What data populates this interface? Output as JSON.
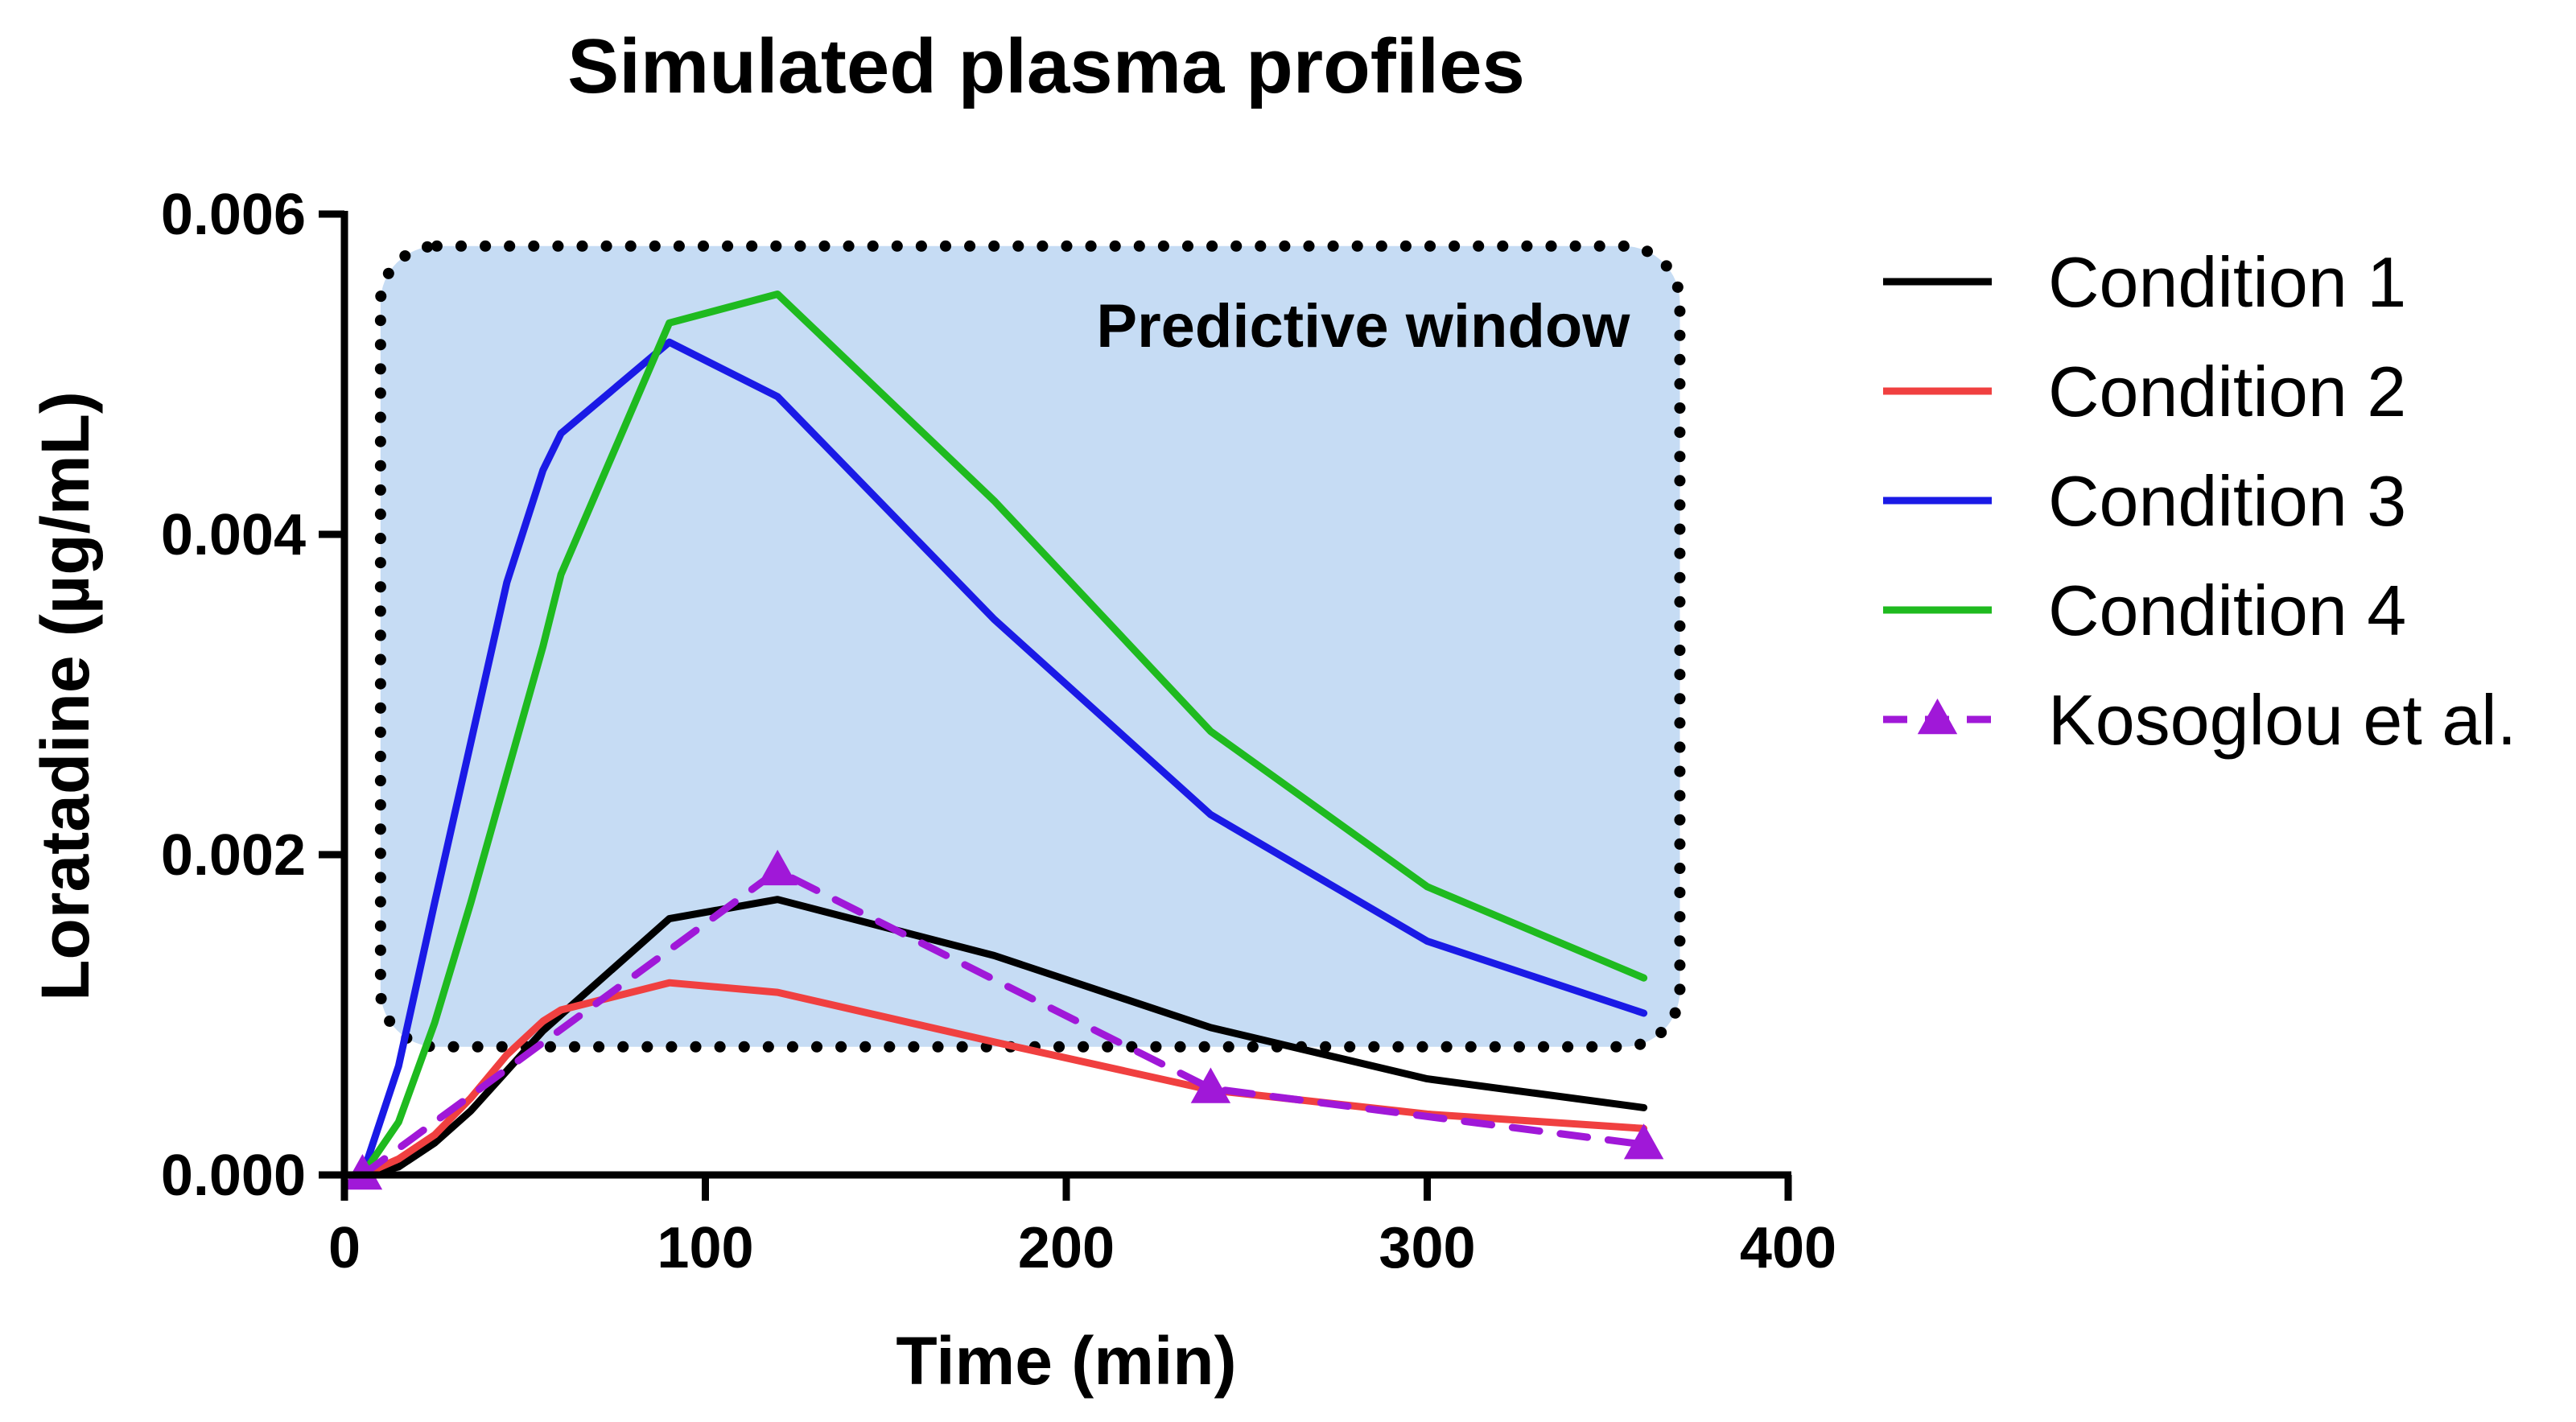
{
  "chart_data": {
    "type": "line",
    "title": "Simulated plasma profiles",
    "xlabel": "Time (min)",
    "ylabel": "Loratadine (µg/mL)",
    "xlim": [
      0,
      400
    ],
    "ylim": [
      0,
      0.006
    ],
    "x_ticks": [
      "0",
      "100",
      "200",
      "300",
      "400"
    ],
    "y_ticks": [
      "0.000",
      "0.002",
      "0.004",
      "0.006"
    ],
    "grid": false,
    "legend_position": "right",
    "annotation": {
      "label": "Predictive window",
      "x_range": [
        10,
        370
      ],
      "y_range": [
        0.0008,
        0.0058
      ],
      "fill_color": "#c6dcf4",
      "border_color": "#000000"
    },
    "series": [
      {
        "name": "Condition 1",
        "color": "#000000",
        "style": "solid",
        "marker": "none",
        "x": [
          5,
          15,
          25,
          35,
          45,
          55,
          60,
          90,
          120,
          180,
          240,
          300,
          360
        ],
        "y": [
          0.0,
          5e-05,
          0.0002,
          0.0004,
          0.00065,
          0.0009,
          0.001,
          0.0016,
          0.00172,
          0.00137,
          0.00092,
          0.0006,
          0.00042
        ]
      },
      {
        "name": "Condition 2",
        "color": "#f04040",
        "style": "solid",
        "marker": "none",
        "x": [
          5,
          15,
          25,
          35,
          45,
          55,
          60,
          90,
          120,
          180,
          240,
          300,
          360
        ],
        "y": [
          0.0,
          0.0001,
          0.00025,
          0.00048,
          0.00075,
          0.00096,
          0.00103,
          0.0012,
          0.00114,
          0.00083,
          0.00053,
          0.00038,
          0.00029
        ]
      },
      {
        "name": "Condition 3",
        "color": "#1a1ae6",
        "style": "solid",
        "marker": "none",
        "x": [
          5,
          15,
          25,
          35,
          45,
          55,
          60,
          90,
          120,
          180,
          240,
          300,
          360
        ],
        "y": [
          0.0,
          0.00068,
          0.0017,
          0.0027,
          0.0037,
          0.0044,
          0.00463,
          0.0052,
          0.00486,
          0.00347,
          0.00225,
          0.00146,
          0.00101
        ]
      },
      {
        "name": "Condition 4",
        "color": "#1fba1f",
        "style": "solid",
        "marker": "none",
        "x": [
          5,
          15,
          25,
          35,
          45,
          55,
          60,
          90,
          120,
          180,
          240,
          300,
          360
        ],
        "y": [
          0.0,
          0.00033,
          0.00095,
          0.0017,
          0.0025,
          0.0033,
          0.00375,
          0.00532,
          0.0055,
          0.00421,
          0.00277,
          0.0018,
          0.00123
        ]
      },
      {
        "name": "Kosoglou et al.",
        "color": "#a018d8",
        "style": "dashed",
        "marker": "triangle",
        "x": [
          5,
          120,
          240,
          360
        ],
        "y": [
          0.0,
          0.0019,
          0.00054,
          0.00019
        ]
      }
    ]
  }
}
